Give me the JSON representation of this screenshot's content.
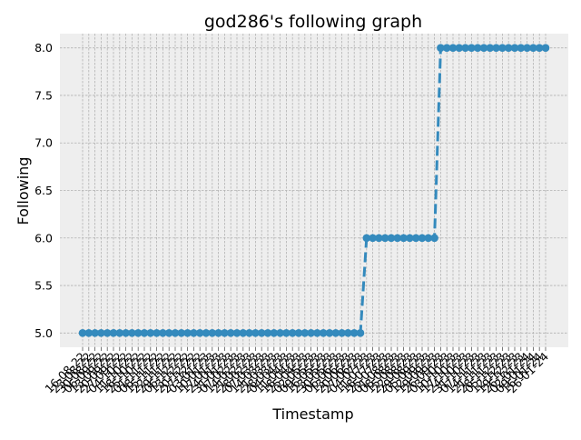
{
  "chart_data": {
    "type": "line",
    "title": "god286's following graph",
    "xlabel": "Timestamp",
    "ylabel": "Following",
    "ylim": [
      4.85,
      8.15
    ],
    "yticks": [
      5.0,
      5.5,
      6.0,
      6.5,
      7.0,
      7.5,
      8.0
    ],
    "grid": true,
    "line_style": "dashed",
    "marker": "circle",
    "series_color": "#348ABD",
    "background_color": "#EEEEEE",
    "grid_color": "#B2B2B2",
    "x": [
      "16-08-22",
      "23-08-22",
      "30-08-22",
      "06-09-22",
      "13-09-22",
      "20-09-22",
      "27-09-22",
      "04-10-22",
      "11-10-22",
      "18-10-22",
      "25-10-22",
      "01-11-22",
      "08-11-22",
      "15-11-22",
      "22-11-22",
      "29-11-22",
      "06-12-22",
      "13-12-22",
      "20-12-22",
      "27-12-22",
      "03-01-23",
      "10-01-23",
      "17-01-23",
      "24-01-23",
      "31-01-23",
      "07-02-23",
      "14-02-23",
      "21-02-23",
      "28-02-23",
      "07-03-23",
      "14-03-23",
      "21-03-23",
      "28-03-23",
      "04-04-23",
      "11-04-23",
      "18-04-23",
      "25-04-23",
      "02-05-23",
      "09-05-23",
      "16-05-23",
      "23-05-23",
      "30-05-23",
      "06-06-23",
      "13-06-23",
      "20-06-23",
      "27-06-23",
      "04-07-23",
      "11-07-23",
      "18-07-23",
      "25-07-23",
      "01-08-23",
      "08-08-23",
      "15-08-23",
      "22-08-23",
      "29-08-23",
      "05-09-23",
      "12-09-23",
      "19-09-23",
      "26-09-23",
      "03-10-23",
      "10-10-23",
      "17-10-23",
      "24-10-23",
      "31-10-23",
      "07-11-23",
      "14-11-23",
      "21-11-23",
      "28-11-23",
      "05-12-23",
      "12-12-23",
      "19-12-23",
      "26-12-23",
      "02-01-24",
      "09-01-24",
      "16-01-24",
      "26-01-24"
    ],
    "tick_labels": [
      "16-08-22",
      "23-08-22",
      "30-08-22",
      "06-09-22",
      "13-09-22",
      "20-09-22",
      "27-09-22",
      "04-10-22",
      "11-10-22",
      "18-10-22",
      "25-10-22",
      "01-11-22",
      "08-11-22",
      "15-11-22",
      "22-11-22",
      "29-11-22",
      "06-12-22",
      "13-12-22",
      "20-12-22",
      "27-12-22",
      "03-01-23",
      "10-01-23",
      "17-01-23",
      "24-01-23",
      "31-01-23",
      "07-02-23",
      "14-02-23",
      "21-02-23",
      "28-02-23",
      "07-03-23",
      "14-03-23",
      "21-03-23",
      "28-03-23",
      "04-04-23",
      "11-04-23",
      "18-04-23",
      "25-04-23",
      "02-05-23",
      "09-05-23",
      "16-05-23",
      "23-05-23",
      "30-05-23",
      "06-06-23",
      "13-06-23",
      "20-06-23",
      "27-06-23",
      "04-07-23",
      "11-07-23",
      "18-07-23",
      "25-07-23",
      "01-08-23",
      "08-08-23",
      "15-08-23",
      "22-08-23",
      "29-08-23",
      "05-09-23",
      "12-09-23",
      "19-09-23",
      "26-09-23",
      "03-10-23",
      "10-10-23",
      "17-10-23",
      "24-10-23",
      "31-10-23",
      "07-11-23",
      "14-11-23",
      "21-11-23",
      "28-11-23",
      "05-12-23",
      "12-12-23",
      "19-12-23",
      "26-12-23",
      "02-01-24",
      "09-01-24",
      "16-01-24",
      "26-01-24"
    ],
    "series": [
      {
        "values": [
          5,
          5,
          5,
          5,
          5,
          5,
          5,
          5,
          5,
          5,
          5,
          5,
          5,
          5,
          5,
          5,
          5,
          5,
          5,
          5,
          5,
          5,
          5,
          5,
          5,
          5,
          5,
          5,
          5,
          5,
          5,
          5,
          5,
          5,
          5,
          5,
          5,
          5,
          5,
          5,
          5,
          5,
          5,
          5,
          5,
          5,
          6,
          6,
          6,
          6,
          6,
          6,
          6,
          6,
          6,
          6,
          6,
          6,
          8,
          8,
          8,
          8,
          8,
          8,
          8,
          8,
          8,
          8,
          8,
          8,
          8,
          8,
          8,
          8,
          8,
          8
        ]
      }
    ]
  }
}
